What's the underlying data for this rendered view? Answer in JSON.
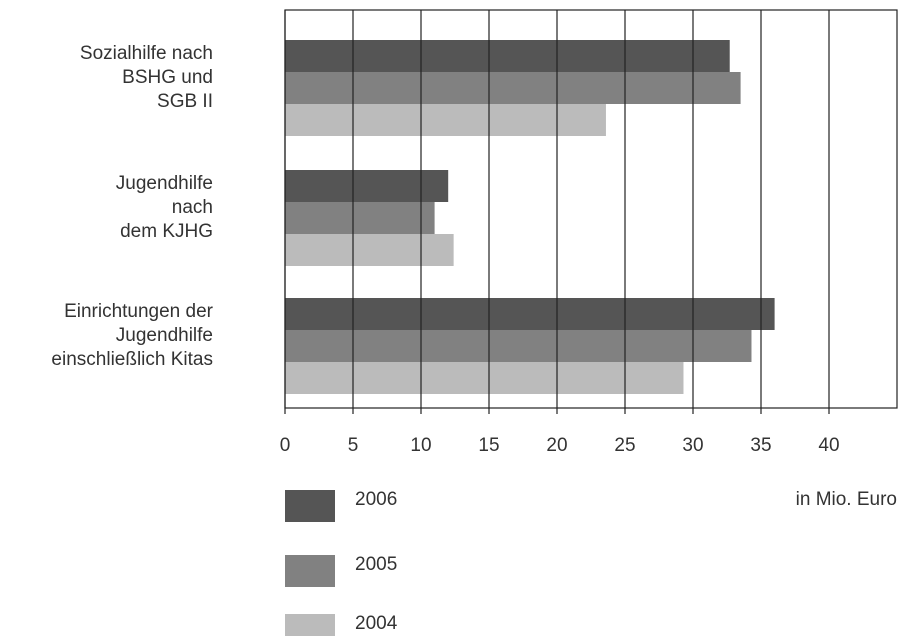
{
  "chart_data": {
    "type": "bar",
    "orientation": "horizontal",
    "categories": [
      [
        "Sozialhilfe nach",
        "BSHG und",
        "SGB II"
      ],
      [
        "Jugendhilfe",
        "nach",
        "dem KJHG"
      ],
      [
        "Einrichtungen der",
        "Jugendhilfe",
        "einschließlich Kitas"
      ]
    ],
    "series": [
      {
        "name": "2006",
        "color": "#555555",
        "values": [
          32.7,
          12.0,
          36.0
        ]
      },
      {
        "name": "2005",
        "color": "#818181",
        "values": [
          33.5,
          11.0,
          34.3
        ]
      },
      {
        "name": "2004",
        "color": "#bbbbbb",
        "values": [
          23.6,
          12.4,
          29.3
        ]
      }
    ],
    "xlabel": "in Mio. Euro",
    "xlim": [
      0,
      45
    ],
    "xticks": [
      0,
      5,
      10,
      15,
      20,
      25,
      30,
      35,
      40
    ],
    "grid": true
  }
}
